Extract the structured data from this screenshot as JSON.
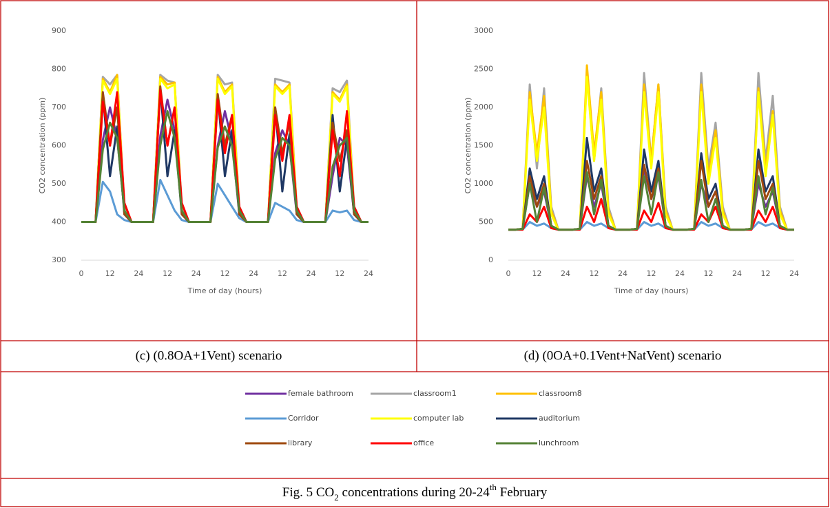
{
  "chart_data": [
    {
      "type": "line",
      "caption": "(c) (0.8OA+1Vent) scenario",
      "x_label": "Time of day (hours)",
      "y_label": "CO2 concentration (ppm)",
      "x": [
        0,
        3,
        6,
        9,
        12,
        15,
        18,
        21,
        24,
        27,
        30,
        33,
        36,
        39,
        42,
        45,
        48,
        51,
        54,
        57,
        60,
        63,
        66,
        69,
        72,
        75,
        78,
        81,
        84,
        87,
        90,
        93,
        96,
        99,
        102,
        105,
        108,
        111,
        114,
        117,
        120
      ],
      "xlim": [
        0,
        120
      ],
      "xticks": [
        0,
        12,
        24,
        {
          "value": 36,
          "label": "12"
        },
        {
          "value": 48,
          "label": "24"
        },
        {
          "value": 60,
          "label": "12"
        },
        {
          "value": 72,
          "label": "24"
        },
        {
          "value": 84,
          "label": "12"
        },
        {
          "value": 96,
          "label": "24"
        },
        {
          "value": 108,
          "label": "12"
        },
        {
          "value": 120,
          "label": "24"
        }
      ],
      "ylim": [
        300,
        900
      ],
      "yticks": [
        300,
        400,
        500,
        600,
        700,
        800,
        900
      ],
      "grid": false,
      "series": [
        {
          "name": "female bathroom",
          "color": "#7030a0",
          "values": [
            400,
            400,
            400,
            615,
            700,
            620,
            430,
            400,
            400,
            400,
            400,
            625,
            720,
            640,
            430,
            400,
            400,
            400,
            400,
            600,
            690,
            610,
            420,
            400,
            400,
            400,
            400,
            580,
            640,
            600,
            420,
            400,
            400,
            400,
            400,
            520,
            620,
            600,
            420,
            400,
            400
          ]
        },
        {
          "name": "classroom1",
          "color": "#a5a5a5",
          "values": [
            400,
            400,
            400,
            780,
            760,
            785,
            440,
            400,
            400,
            400,
            400,
            785,
            770,
            765,
            440,
            400,
            400,
            400,
            400,
            785,
            760,
            765,
            440,
            400,
            400,
            400,
            400,
            775,
            770,
            765,
            440,
            400,
            400,
            400,
            400,
            750,
            740,
            770,
            440,
            400,
            400
          ]
        },
        {
          "name": "classroom8",
          "color": "#ffc000",
          "values": [
            400,
            400,
            400,
            775,
            740,
            785,
            430,
            400,
            400,
            400,
            400,
            780,
            760,
            765,
            430,
            400,
            400,
            400,
            400,
            780,
            740,
            760,
            430,
            400,
            400,
            400,
            400,
            760,
            740,
            760,
            430,
            400,
            400,
            400,
            400,
            740,
            720,
            760,
            430,
            400,
            400
          ]
        },
        {
          "name": "Corridor",
          "color": "#5b9bd5",
          "values": [
            400,
            400,
            400,
            505,
            480,
            420,
            405,
            400,
            400,
            400,
            400,
            510,
            470,
            430,
            405,
            400,
            400,
            400,
            400,
            500,
            470,
            440,
            410,
            400,
            400,
            400,
            400,
            450,
            440,
            430,
            405,
            400,
            400,
            400,
            400,
            430,
            425,
            430,
            405,
            400,
            400
          ]
        },
        {
          "name": "computer lab",
          "color": "#ffff00",
          "values": [
            400,
            400,
            400,
            770,
            735,
            775,
            430,
            400,
            400,
            400,
            400,
            775,
            750,
            760,
            430,
            400,
            400,
            400,
            400,
            775,
            735,
            755,
            430,
            400,
            400,
            400,
            400,
            755,
            735,
            755,
            430,
            400,
            400,
            400,
            400,
            735,
            715,
            755,
            430,
            400,
            400
          ]
        },
        {
          "name": "auditorium",
          "color": "#1f3864",
          "values": [
            400,
            400,
            400,
            735,
            520,
            650,
            420,
            400,
            400,
            400,
            400,
            750,
            520,
            640,
            420,
            400,
            400,
            400,
            400,
            730,
            520,
            640,
            420,
            400,
            400,
            400,
            400,
            700,
            480,
            630,
            420,
            400,
            400,
            400,
            400,
            680,
            480,
            620,
            420,
            400,
            400
          ]
        },
        {
          "name": "library",
          "color": "#9e480e",
          "values": [
            400,
            400,
            400,
            740,
            600,
            700,
            420,
            400,
            400,
            400,
            400,
            755,
            600,
            700,
            420,
            400,
            400,
            400,
            400,
            735,
            600,
            680,
            420,
            400,
            400,
            400,
            400,
            700,
            580,
            660,
            420,
            400,
            400,
            400,
            400,
            660,
            560,
            640,
            420,
            400,
            400
          ]
        },
        {
          "name": "office",
          "color": "#ff0000",
          "values": [
            400,
            400,
            400,
            715,
            600,
            740,
            450,
            400,
            400,
            400,
            400,
            745,
            600,
            700,
            450,
            400,
            400,
            400,
            400,
            720,
            580,
            680,
            440,
            400,
            400,
            400,
            400,
            680,
            560,
            680,
            440,
            400,
            400,
            400,
            400,
            640,
            520,
            690,
            440,
            400,
            400
          ]
        },
        {
          "name": "lunchroom",
          "color": "#548235",
          "values": [
            400,
            400,
            400,
            590,
            660,
            620,
            430,
            400,
            400,
            400,
            400,
            600,
            690,
            620,
            430,
            400,
            400,
            400,
            400,
            595,
            650,
            600,
            430,
            400,
            400,
            400,
            400,
            565,
            620,
            600,
            430,
            400,
            400,
            400,
            400,
            545,
            600,
            620,
            430,
            400,
            400
          ]
        }
      ]
    },
    {
      "type": "line",
      "caption": "(d) (0OA+0.1Vent+NatVent) scenario",
      "x_label": "Time of day (hours)",
      "y_label": "CO2 concentration (ppm)",
      "x": [
        0,
        3,
        6,
        9,
        12,
        15,
        18,
        21,
        24,
        27,
        30,
        33,
        36,
        39,
        42,
        45,
        48,
        51,
        54,
        57,
        60,
        63,
        66,
        69,
        72,
        75,
        78,
        81,
        84,
        87,
        90,
        93,
        96,
        99,
        102,
        105,
        108,
        111,
        114,
        117,
        120
      ],
      "xlim": [
        0,
        120
      ],
      "xticks": [
        0,
        12,
        24,
        {
          "value": 36,
          "label": "12"
        },
        {
          "value": 48,
          "label": "24"
        },
        {
          "value": 60,
          "label": "12"
        },
        {
          "value": 72,
          "label": "24"
        },
        {
          "value": 84,
          "label": "12"
        },
        {
          "value": 96,
          "label": "24"
        },
        {
          "value": 108,
          "label": "12"
        },
        {
          "value": 120,
          "label": "24"
        }
      ],
      "ylim": [
        0,
        3000
      ],
      "yticks": [
        0,
        500,
        1000,
        1500,
        2000,
        2500,
        3000
      ],
      "grid": false,
      "series": [
        {
          "name": "female bathroom",
          "color": "#7030a0",
          "values": [
            400,
            400,
            410,
            1000,
            700,
            900,
            450,
            400,
            400,
            400,
            410,
            1100,
            700,
            1000,
            450,
            400,
            400,
            400,
            410,
            1200,
            800,
            1100,
            450,
            400,
            400,
            400,
            410,
            1000,
            700,
            900,
            450,
            400,
            400,
            400,
            410,
            1000,
            700,
            900,
            450,
            400,
            400
          ]
        },
        {
          "name": "classroom1",
          "color": "#a5a5a5",
          "values": [
            400,
            400,
            410,
            2300,
            1200,
            2250,
            700,
            400,
            400,
            400,
            410,
            2450,
            1300,
            2250,
            700,
            400,
            400,
            400,
            410,
            2450,
            1300,
            2300,
            700,
            400,
            400,
            400,
            410,
            2450,
            1200,
            1800,
            700,
            400,
            400,
            400,
            410,
            2450,
            1300,
            2150,
            700,
            400,
            400
          ]
        },
        {
          "name": "classroom8",
          "color": "#ffc000",
          "values": [
            400,
            400,
            410,
            2200,
            1400,
            2150,
            650,
            400,
            400,
            400,
            410,
            2550,
            1400,
            2200,
            650,
            400,
            400,
            400,
            410,
            2300,
            1300,
            2300,
            650,
            400,
            400,
            400,
            410,
            2300,
            1100,
            1700,
            650,
            400,
            400,
            400,
            410,
            2250,
            1200,
            1950,
            650,
            400,
            400
          ]
        },
        {
          "name": "Corridor",
          "color": "#5b9bd5",
          "values": [
            400,
            400,
            400,
            500,
            450,
            480,
            420,
            400,
            400,
            400,
            400,
            500,
            450,
            480,
            420,
            400,
            400,
            400,
            400,
            500,
            450,
            480,
            420,
            400,
            400,
            400,
            400,
            500,
            450,
            480,
            420,
            400,
            400,
            400,
            400,
            500,
            450,
            480,
            420,
            400,
            400
          ]
        },
        {
          "name": "computer lab",
          "color": "#ffff00",
          "values": [
            400,
            400,
            410,
            2100,
            1300,
            2000,
            600,
            400,
            400,
            400,
            410,
            2400,
            1300,
            2100,
            600,
            400,
            400,
            400,
            410,
            2200,
            1200,
            2200,
            600,
            400,
            400,
            400,
            410,
            2200,
            1000,
            1600,
            600,
            400,
            400,
            400,
            410,
            2200,
            1100,
            1900,
            600,
            400,
            400
          ]
        },
        {
          "name": "auditorium",
          "color": "#1f3864",
          "values": [
            400,
            400,
            410,
            1200,
            800,
            1100,
            450,
            400,
            400,
            400,
            410,
            1600,
            900,
            1200,
            450,
            400,
            400,
            400,
            410,
            1450,
            900,
            1300,
            450,
            400,
            400,
            400,
            410,
            1400,
            800,
            1000,
            450,
            400,
            400,
            400,
            410,
            1450,
            900,
            1100,
            450,
            400,
            400
          ]
        },
        {
          "name": "library",
          "color": "#9e480e",
          "values": [
            400,
            400,
            410,
            1100,
            700,
            1000,
            450,
            400,
            400,
            400,
            410,
            1300,
            800,
            1100,
            450,
            400,
            400,
            400,
            410,
            1250,
            800,
            1200,
            450,
            400,
            400,
            400,
            410,
            1300,
            700,
            900,
            450,
            400,
            400,
            400,
            410,
            1300,
            800,
            1000,
            450,
            400,
            400
          ]
        },
        {
          "name": "office",
          "color": "#ff0000",
          "values": [
            400,
            400,
            400,
            600,
            500,
            700,
            420,
            400,
            400,
            400,
            400,
            700,
            500,
            800,
            420,
            400,
            400,
            400,
            400,
            650,
            500,
            750,
            420,
            400,
            400,
            400,
            400,
            600,
            500,
            700,
            420,
            400,
            400,
            400,
            400,
            650,
            500,
            700,
            420,
            400,
            400
          ]
        },
        {
          "name": "lunchroom",
          "color": "#548235",
          "values": [
            400,
            400,
            410,
            1000,
            500,
            950,
            450,
            400,
            400,
            400,
            410,
            1150,
            600,
            1050,
            450,
            400,
            400,
            400,
            410,
            1100,
            600,
            1150,
            450,
            400,
            400,
            400,
            410,
            1050,
            500,
            800,
            450,
            400,
            400,
            400,
            410,
            1100,
            600,
            950,
            450,
            400,
            400
          ]
        }
      ]
    }
  ],
  "figure_caption": [
    "Fig. 5 CO",
    "2",
    " concentrations during 20-24",
    "th",
    " February"
  ]
}
